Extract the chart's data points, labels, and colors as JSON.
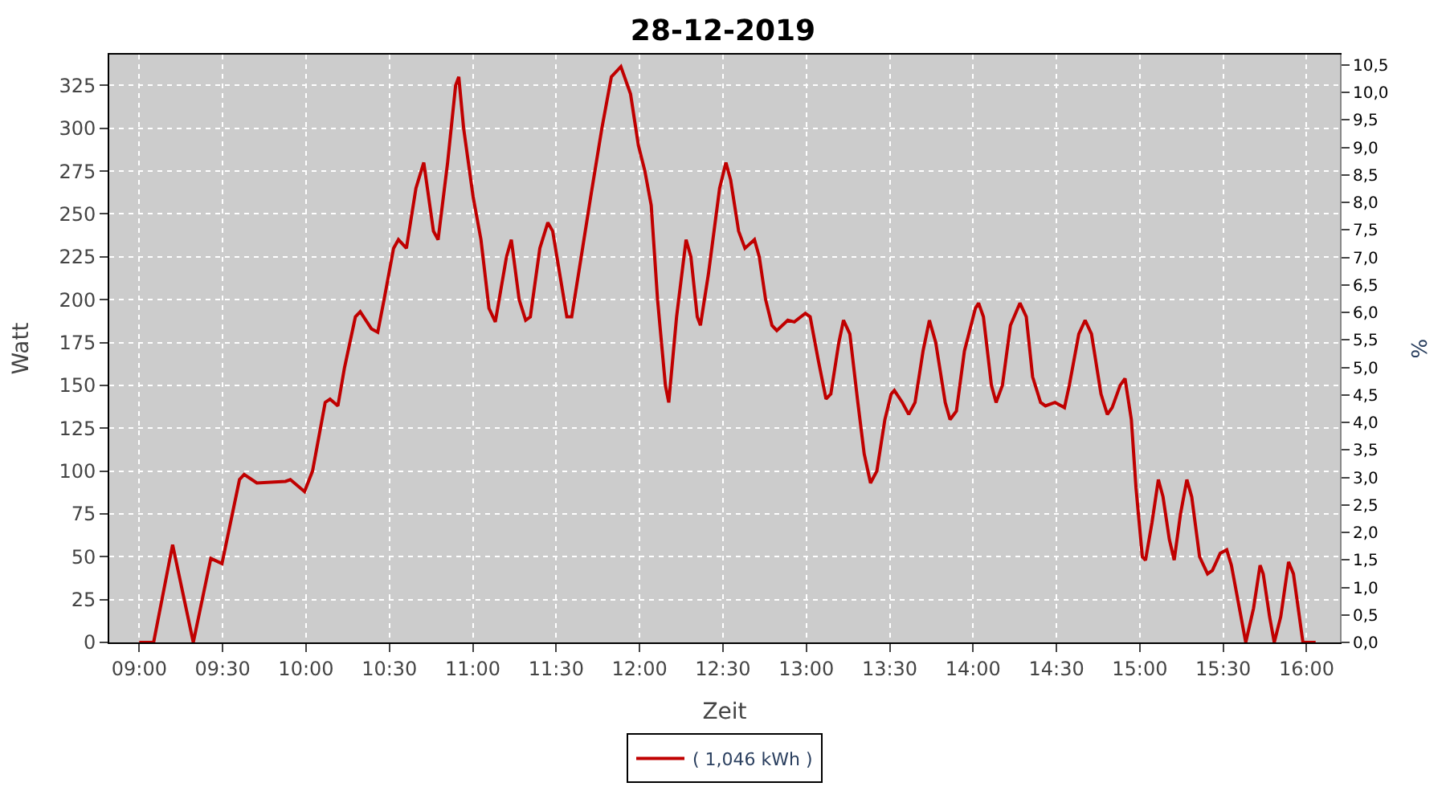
{
  "chart_data": {
    "type": "line",
    "title": "28-12-2019",
    "xlabel": "Zeit",
    "ylabel": "Watt",
    "y2label": "%",
    "x": [
      9.0,
      9.086,
      9.2,
      9.324,
      9.429,
      9.496,
      9.601,
      9.629,
      9.705,
      9.877,
      9.906,
      9.991,
      10.039,
      10.115,
      10.144,
      10.191,
      10.23,
      10.296,
      10.325,
      10.392,
      10.43,
      10.468,
      10.525,
      10.554,
      10.602,
      10.659,
      10.706,
      10.764,
      10.792,
      10.849,
      10.897,
      10.916,
      10.945,
      11.002,
      11.049,
      11.097,
      11.135,
      11.202,
      11.231,
      11.278,
      11.317,
      11.345,
      11.402,
      11.45,
      11.479,
      11.564,
      11.593,
      11.65,
      11.707,
      11.774,
      11.831,
      11.888,
      11.946,
      11.993,
      12.032,
      12.07,
      12.108,
      12.155,
      12.175,
      12.222,
      12.279,
      12.308,
      12.346,
      12.365,
      12.413,
      12.48,
      12.518,
      12.546,
      12.594,
      12.632,
      12.689,
      12.718,
      12.756,
      12.794,
      12.823,
      12.889,
      12.928,
      12.994,
      13.023,
      13.071,
      13.118,
      13.147,
      13.195,
      13.223,
      13.261,
      13.309,
      13.347,
      13.385,
      13.423,
      13.471,
      13.509,
      13.528,
      13.576,
      13.614,
      13.652,
      13.7,
      13.738,
      13.776,
      13.833,
      13.862,
      13.9,
      13.948,
      14.014,
      14.033,
      14.062,
      14.11,
      14.138,
      14.176,
      14.224,
      14.281,
      14.319,
      14.357,
      14.405,
      14.434,
      14.491,
      14.548,
      14.577,
      14.634,
      14.672,
      14.71,
      14.767,
      14.805,
      14.834,
      14.882,
      14.911,
      14.949,
      14.977,
      15.015,
      15.034,
      15.073,
      15.111,
      15.139,
      15.177,
      15.206,
      15.244,
      15.282,
      15.311,
      15.358,
      15.406,
      15.435,
      15.482,
      15.521,
      15.549,
      15.597,
      15.635,
      15.682,
      15.721,
      15.74,
      15.778,
      15.806,
      15.845,
      15.892,
      15.921,
      15.978,
      16.054
    ],
    "series": [
      {
        "name": "( 1,046 kWh )",
        "color": "#c00000",
        "values": [
          0,
          0,
          57,
          0,
          49,
          46,
          95,
          98,
          93,
          94,
          95,
          88,
          100,
          140,
          142,
          138,
          160,
          190,
          193,
          183,
          181,
          200,
          230,
          235,
          230,
          265,
          280,
          240,
          235,
          280,
          325,
          330,
          300,
          260,
          235,
          195,
          187,
          225,
          235,
          200,
          188,
          190,
          230,
          245,
          240,
          190,
          190,
          225,
          260,
          300,
          330,
          336,
          320,
          290,
          275,
          255,
          200,
          150,
          140,
          190,
          235,
          225,
          190,
          185,
          215,
          265,
          280,
          270,
          240,
          230,
          235,
          225,
          200,
          185,
          182,
          188,
          187,
          192,
          190,
          165,
          142,
          145,
          175,
          188,
          180,
          140,
          110,
          93,
          100,
          130,
          145,
          147,
          140,
          133,
          140,
          170,
          188,
          175,
          140,
          130,
          135,
          170,
          195,
          198,
          190,
          150,
          140,
          150,
          185,
          198,
          190,
          155,
          140,
          138,
          140,
          137,
          150,
          180,
          188,
          180,
          145,
          133,
          137,
          150,
          154,
          130,
          90,
          50,
          48,
          70,
          95,
          85,
          60,
          48,
          75,
          95,
          85,
          50,
          40,
          42,
          52,
          54,
          45,
          20,
          0,
          20,
          45,
          40,
          15,
          0,
          15,
          47,
          40,
          0,
          0
        ]
      }
    ],
    "xlim": [
      8.82,
      16.2
    ],
    "xticks": [
      {
        "value": 9,
        "label": "09:00"
      },
      {
        "value": 9.5,
        "label": "09:30"
      },
      {
        "value": 10,
        "label": "10:00"
      },
      {
        "value": 10.5,
        "label": "10:30"
      },
      {
        "value": 11,
        "label": "11:00"
      },
      {
        "value": 11.5,
        "label": "11:30"
      },
      {
        "value": 12,
        "label": "12:00"
      },
      {
        "value": 12.5,
        "label": "12:30"
      },
      {
        "value": 13,
        "label": "13:00"
      },
      {
        "value": 13.5,
        "label": "13:30"
      },
      {
        "value": 14,
        "label": "14:00"
      },
      {
        "value": 14.5,
        "label": "14:30"
      },
      {
        "value": 15,
        "label": "15:00"
      },
      {
        "value": 15.5,
        "label": "15:30"
      },
      {
        "value": 16,
        "label": "16:00"
      }
    ],
    "ylim": [
      0,
      343
    ],
    "yticks": [
      0,
      25,
      50,
      75,
      100,
      125,
      150,
      175,
      200,
      225,
      250,
      275,
      300,
      325
    ],
    "y2lim": [
      0,
      10.69
    ],
    "y2ticks": [
      {
        "value": 0,
        "label": "0,0"
      },
      {
        "value": 0.5,
        "label": "0,5"
      },
      {
        "value": 1,
        "label": "1,0"
      },
      {
        "value": 1.5,
        "label": "1,5"
      },
      {
        "value": 2,
        "label": "2,0"
      },
      {
        "value": 2.5,
        "label": "2,5"
      },
      {
        "value": 3,
        "label": "3,0"
      },
      {
        "value": 3.5,
        "label": "3,5"
      },
      {
        "value": 4,
        "label": "4,0"
      },
      {
        "value": 4.5,
        "label": "4,5"
      },
      {
        "value": 5,
        "label": "5,0"
      },
      {
        "value": 5.5,
        "label": "5,5"
      },
      {
        "value": 6,
        "label": "6,0"
      },
      {
        "value": 6.5,
        "label": "6,5"
      },
      {
        "value": 7,
        "label": "7,0"
      },
      {
        "value": 7.5,
        "label": "7,5"
      },
      {
        "value": 8,
        "label": "8,0"
      },
      {
        "value": 8.5,
        "label": "8,5"
      },
      {
        "value": 9,
        "label": "9,0"
      },
      {
        "value": 9.5,
        "label": "9,5"
      },
      {
        "value": 10,
        "label": "10,0"
      },
      {
        "value": 10.5,
        "label": "10,5"
      }
    ],
    "grid": true,
    "legend": "bottom",
    "marker": "none",
    "line_style": "solid"
  }
}
